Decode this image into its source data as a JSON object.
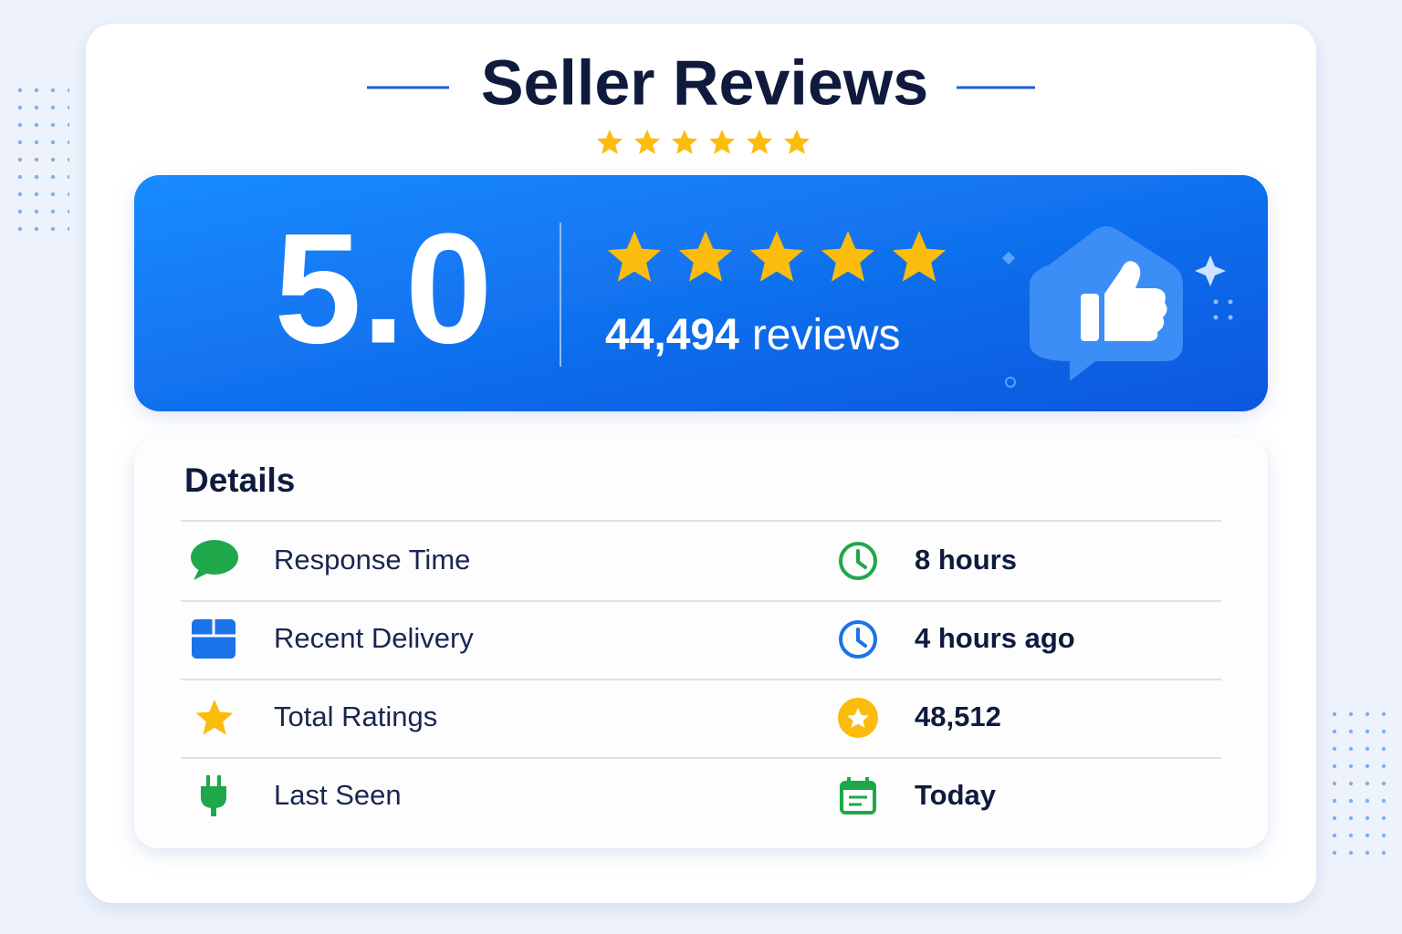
{
  "header": {
    "title": "Seller Reviews"
  },
  "summary": {
    "rating": "5.0",
    "review_count": "44,494",
    "review_word": "reviews"
  },
  "details": {
    "title": "Details",
    "rows": [
      {
        "label": "Response Time",
        "value": "8 hours"
      },
      {
        "label": "Recent Delivery",
        "value": "4 hours ago"
      },
      {
        "label": "Total Ratings",
        "value": "48,512"
      },
      {
        "label": "Last Seen",
        "value": "Today"
      }
    ]
  }
}
